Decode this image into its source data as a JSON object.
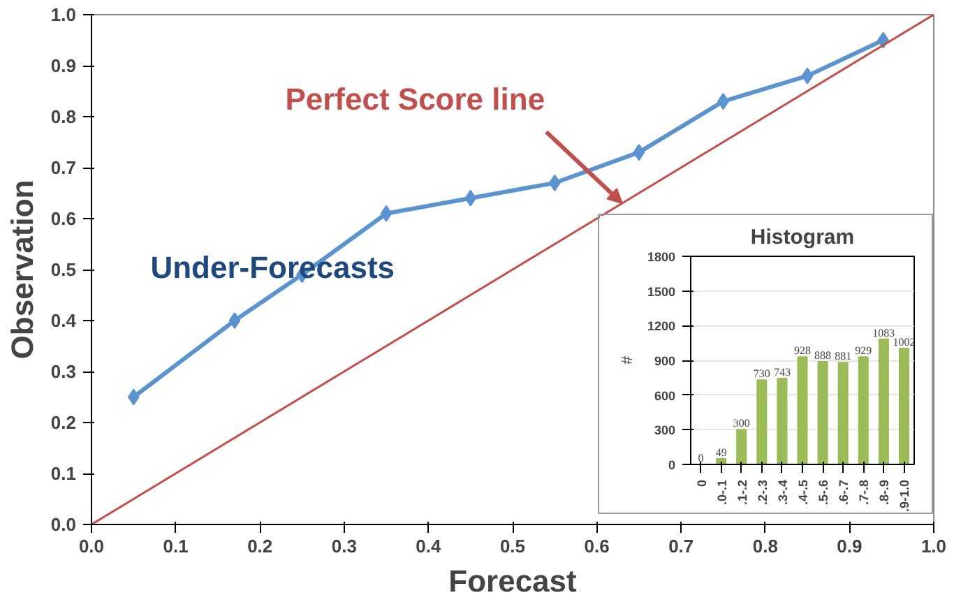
{
  "chart_data": [
    {
      "type": "line",
      "xlabel": "Forecast",
      "ylabel": "Observation",
      "xlim": [
        0,
        1
      ],
      "ylim": [
        0,
        1
      ],
      "xticks": [
        {
          "value": 0,
          "label": "0.0"
        },
        0.1,
        0.2,
        0.3,
        0.4,
        0.5,
        0.6,
        0.7,
        0.8,
        0.9,
        {
          "value": 1,
          "label": "1.0"
        }
      ],
      "yticks": [
        {
          "value": 0,
          "label": "0.0"
        },
        0.1,
        0.2,
        0.3,
        0.4,
        0.5,
        0.6,
        0.7,
        0.8,
        0.9,
        {
          "value": 1,
          "label": "1.0"
        }
      ],
      "grid": false,
      "marker": "diamond",
      "line_style": "solid",
      "series": [
        {
          "color": "#5b93cf",
          "x": [
            0.05,
            0.17,
            0.25,
            0.35,
            0.45,
            0.55,
            0.65,
            0.75,
            0.85,
            0.94
          ],
          "values": [
            0.25,
            0.4,
            0.49,
            0.61,
            0.64,
            0.67,
            0.73,
            0.83,
            0.88,
            0.95
          ]
        },
        {
          "color": "#c0504d",
          "x": [
            0,
            1
          ],
          "values": [
            0,
            1
          ],
          "marker": "none"
        }
      ],
      "annotations": [
        {
          "text": "Perfect Score line",
          "x": 0.63,
          "y": 0.63
        },
        "Under-Forecasts"
      ]
    },
    {
      "type": "bar",
      "title": "Histogram",
      "ylabel": "#",
      "categories": [
        "0",
        ".0-.1",
        ".1-.2",
        ".2-.3",
        ".3-.4",
        ".4-.5",
        ".5-.6",
        ".6-.7",
        ".7-.8",
        ".8-.9",
        ".9-1.0"
      ],
      "values": [
        0,
        49,
        300,
        730,
        743,
        928,
        888,
        881,
        929,
        1083,
        1002
      ],
      "color": "#9bbb59",
      "ylim": [
        0,
        1800
      ],
      "yticks": [
        0,
        300,
        600,
        900,
        1200,
        1500,
        1800
      ],
      "grid": "y",
      "data_labels": true
    }
  ]
}
